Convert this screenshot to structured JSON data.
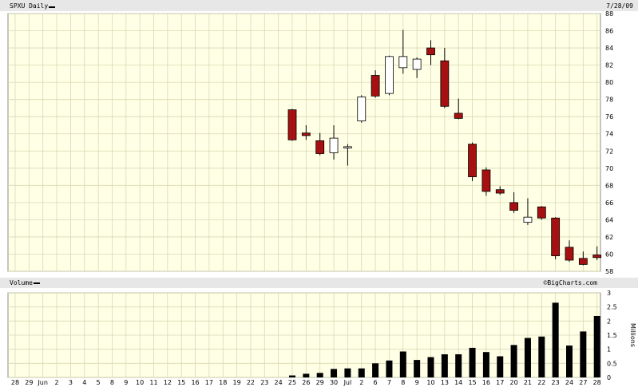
{
  "header": {
    "ticker_label": "SPXU Daily",
    "date": "7/28/09"
  },
  "volume_header": {
    "label": "Volume",
    "watermark": "©BigCharts.com"
  },
  "colors": {
    "plot_bg": "#ffffe6",
    "grid": "#d8d8b4",
    "header_bg": "#e7e7e7",
    "down_candle": "#a61010",
    "up_candle": "#ffffff",
    "volume_bar": "#000000"
  },
  "chart_data": [
    {
      "type": "candlestick",
      "title": "SPXU Daily",
      "ylim": [
        58,
        88
      ],
      "y_ticks": [
        58,
        60,
        62,
        64,
        66,
        68,
        70,
        72,
        74,
        76,
        78,
        80,
        82,
        84,
        86,
        88
      ],
      "grid": true,
      "x_labels": [
        "28",
        "29",
        "Jun",
        "2",
        "3",
        "4",
        "5",
        "8",
        "9",
        "10",
        "11",
        "12",
        "15",
        "16",
        "17",
        "18",
        "19",
        "22",
        "23",
        "24",
        "25",
        "26",
        "29",
        "30",
        "Jul",
        "2",
        "6",
        "7",
        "8",
        "9",
        "10",
        "13",
        "14",
        "15",
        "16",
        "17",
        "20",
        "21",
        "22",
        "23",
        "24",
        "27",
        "28"
      ],
      "candles": [
        {
          "date": "25",
          "open": 76.8,
          "high": 76.9,
          "low": 73.2,
          "close": 73.3
        },
        {
          "date": "26",
          "open": 74.1,
          "high": 75.0,
          "low": 73.3,
          "close": 73.8
        },
        {
          "date": "29",
          "open": 73.2,
          "high": 74.1,
          "low": 71.5,
          "close": 71.7
        },
        {
          "date": "30",
          "open": 71.8,
          "high": 75.0,
          "low": 71.0,
          "close": 73.5
        },
        {
          "date": "Jul",
          "open": 72.5,
          "high": 72.8,
          "low": 70.3,
          "close": 72.5
        },
        {
          "date": "2",
          "open": 75.5,
          "high": 78.5,
          "low": 75.3,
          "close": 78.3
        },
        {
          "date": "6",
          "open": 80.8,
          "high": 81.4,
          "low": 78.2,
          "close": 78.4
        },
        {
          "date": "7",
          "open": 78.7,
          "high": 83.1,
          "low": 78.5,
          "close": 83.0
        },
        {
          "date": "8",
          "open": 81.7,
          "high": 86.1,
          "low": 81.0,
          "close": 83.0
        },
        {
          "date": "9",
          "open": 81.5,
          "high": 82.9,
          "low": 80.5,
          "close": 82.7
        },
        {
          "date": "10",
          "open": 84.0,
          "high": 84.9,
          "low": 82.0,
          "close": 83.2
        },
        {
          "date": "13",
          "open": 82.5,
          "high": 84.0,
          "low": 77.0,
          "close": 77.2
        },
        {
          "date": "14",
          "open": 76.4,
          "high": 78.1,
          "low": 75.7,
          "close": 75.8
        },
        {
          "date": "15",
          "open": 72.8,
          "high": 73.0,
          "low": 68.5,
          "close": 69.0
        },
        {
          "date": "16",
          "open": 69.8,
          "high": 70.1,
          "low": 66.8,
          "close": 67.3
        },
        {
          "date": "17",
          "open": 67.5,
          "high": 67.9,
          "low": 66.9,
          "close": 67.1
        },
        {
          "date": "20",
          "open": 66.0,
          "high": 67.2,
          "low": 64.8,
          "close": 65.1
        },
        {
          "date": "21",
          "open": 63.7,
          "high": 66.5,
          "low": 63.4,
          "close": 64.3
        },
        {
          "date": "22",
          "open": 65.5,
          "high": 65.6,
          "low": 64.0,
          "close": 64.2
        },
        {
          "date": "23",
          "open": 64.2,
          "high": 64.3,
          "low": 59.4,
          "close": 59.8
        },
        {
          "date": "24",
          "open": 60.8,
          "high": 61.6,
          "low": 59.1,
          "close": 59.3
        },
        {
          "date": "27",
          "open": 59.5,
          "high": 60.3,
          "low": 58.7,
          "close": 58.8
        },
        {
          "date": "28",
          "open": 59.9,
          "high": 60.9,
          "low": 59.3,
          "close": 59.6
        }
      ]
    },
    {
      "type": "bar",
      "title": "Volume",
      "ylabel": "Millions",
      "ylim": [
        0,
        3
      ],
      "y_ticks": [
        "0",
        "0.5",
        "1",
        "1.5",
        "2",
        "2.5",
        "3"
      ],
      "grid": true,
      "categories": [
        "25",
        "26",
        "29",
        "30",
        "Jul",
        "2",
        "6",
        "7",
        "8",
        "9",
        "10",
        "13",
        "14",
        "15",
        "16",
        "17",
        "20",
        "21",
        "22",
        "23",
        "24",
        "27",
        "28"
      ],
      "values": [
        0.07,
        0.13,
        0.16,
        0.3,
        0.32,
        0.32,
        0.5,
        0.6,
        0.92,
        0.62,
        0.72,
        0.82,
        0.82,
        1.05,
        0.9,
        0.75,
        1.15,
        1.4,
        1.45,
        2.65,
        1.13,
        1.63,
        2.18
      ]
    }
  ]
}
